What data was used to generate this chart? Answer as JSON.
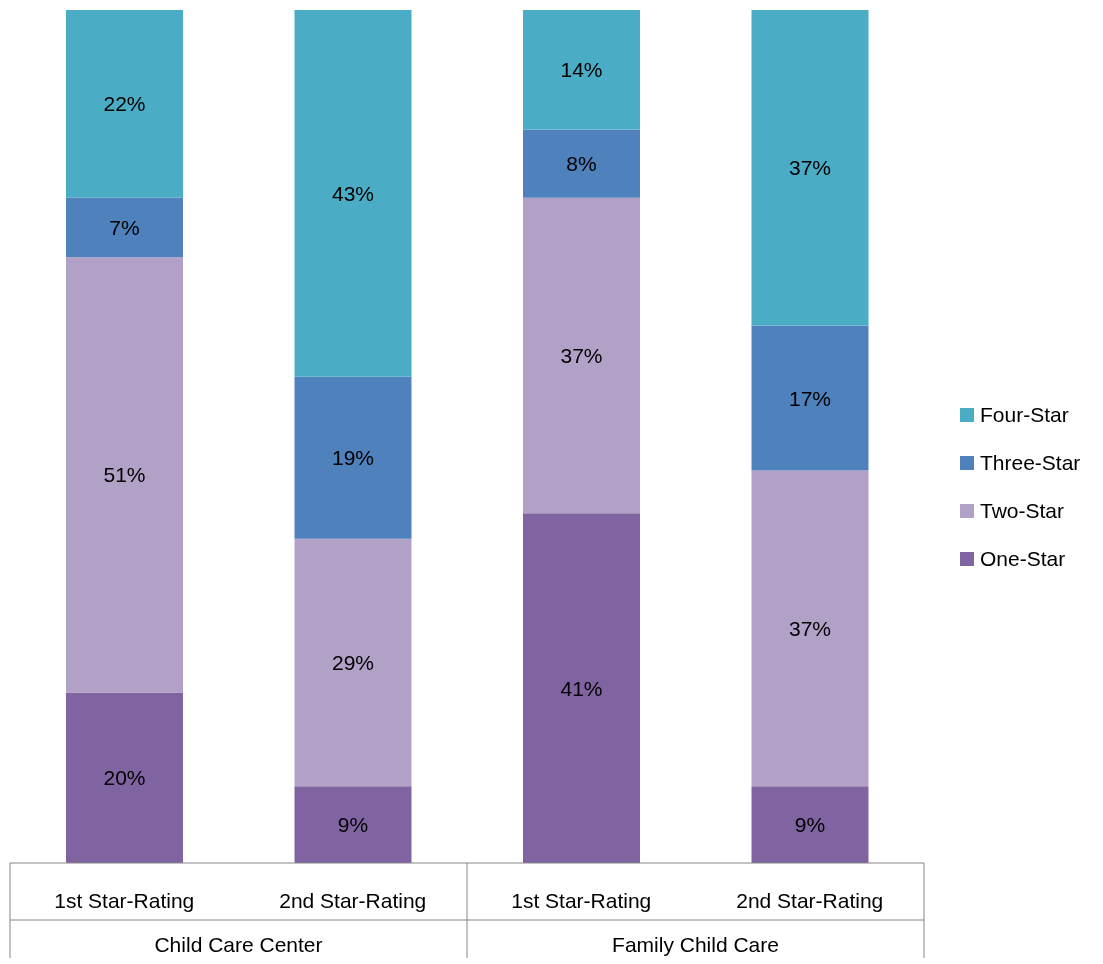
{
  "chart_data": {
    "type": "bar",
    "stacked": true,
    "categories": [
      "1st Star-Rating",
      "2nd Star-Rating",
      "1st Star-Rating",
      "2nd Star-Rating"
    ],
    "annotations": [
      "Child Care Center",
      "Family Child Care"
    ],
    "ylim": [
      0,
      100
    ],
    "tick_labels": "x",
    "grid": false,
    "legend": "right",
    "series": [
      {
        "name": "One-Star",
        "color": "#8064a2",
        "values": [
          20,
          9,
          41,
          9
        ],
        "value_labels": [
          "20%",
          "9%",
          "41%",
          "9%"
        ]
      },
      {
        "name": "Two-Star",
        "color": "#b2a1c7",
        "values": [
          51,
          29,
          37,
          37
        ],
        "value_labels": [
          "51%",
          "29%",
          "37%",
          "37%"
        ]
      },
      {
        "name": "Three-Star",
        "color": "#4f81bd",
        "values": [
          7,
          19,
          8,
          17
        ],
        "value_labels": [
          "7%",
          "19%",
          "8%",
          "17%"
        ]
      },
      {
        "name": "Four-Star",
        "color": "#4bacc6",
        "values": [
          22,
          43,
          14,
          37
        ],
        "value_labels": [
          "22%",
          "43%",
          "14%",
          "37%"
        ]
      }
    ]
  }
}
